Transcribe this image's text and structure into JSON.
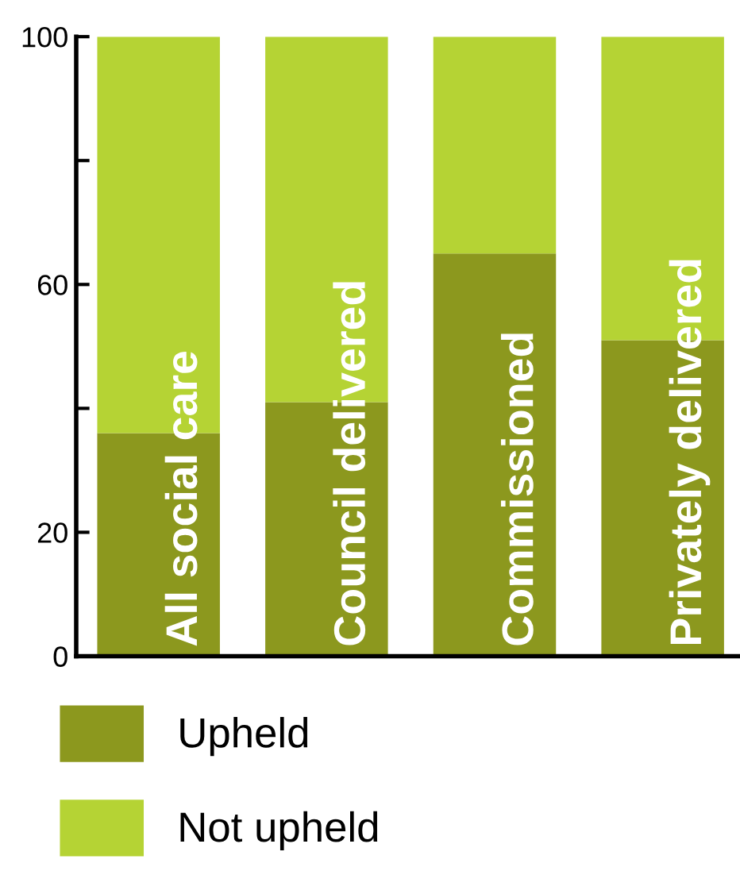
{
  "chart_data": {
    "type": "bar",
    "stacked": true,
    "categories": [
      "All social care",
      "Council delivered",
      "Commissioned",
      "Privately delivered"
    ],
    "series": [
      {
        "name": "Upheld",
        "color": "#8c981e",
        "values": [
          36,
          41,
          65,
          51
        ]
      },
      {
        "name": "Not upheld",
        "color": "#b5d334",
        "values": [
          64,
          59,
          35,
          49
        ]
      }
    ],
    "ylim": [
      0,
      100
    ],
    "yticks": [
      0,
      20,
      {
        "value": 40,
        "label": null
      },
      60,
      {
        "value": 80,
        "label": null
      },
      100
    ],
    "grid": false,
    "legend": "bottom left"
  }
}
